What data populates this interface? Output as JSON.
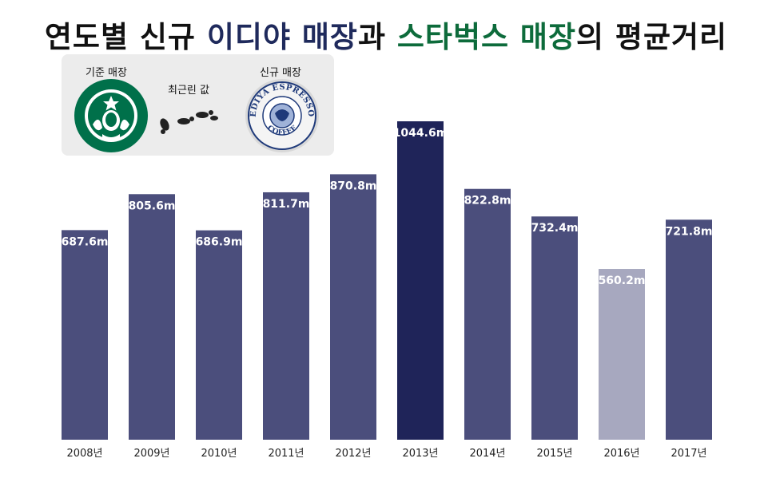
{
  "title": {
    "part1": "연도별 신규 ",
    "ediya": "이디야 매장",
    "part2": "과 ",
    "starbucks": "스타벅스 매장",
    "part3": "의 평균거리"
  },
  "legend": {
    "base_label": "기준 매장",
    "distance_label": "최근린 값",
    "new_label": "신규 매장",
    "base_logo": "starbucks-logo",
    "new_logo": "ediya-espresso-logo",
    "ediya_logo_text_top": "EDIYA ESPRESSO",
    "ediya_logo_text_bottom": "COFFEE"
  },
  "colors": {
    "bar": "#4b4e7c",
    "highlight_max": "#1f2459",
    "highlight_min": "#a7a8bf",
    "ediya_title": "#1f2a5c",
    "starbucks_title": "#0d6b3b",
    "starbucks_green": "#00704a"
  },
  "chart_data": {
    "type": "bar",
    "categories": [
      "2008년",
      "2009년",
      "2010년",
      "2011년",
      "2012년",
      "2013년",
      "2014년",
      "2015년",
      "2016년",
      "2017년"
    ],
    "values": [
      687.6,
      805.6,
      686.9,
      811.7,
      870.8,
      1044.6,
      822.8,
      732.4,
      560.2,
      721.8
    ],
    "value_labels": [
      "687.6m",
      "805.6m",
      "686.9m",
      "811.7m",
      "870.8m",
      "1044.6m",
      "822.8m",
      "732.4m",
      "560.2m",
      "721.8m"
    ],
    "unit": "m",
    "title": "",
    "xlabel": "",
    "ylabel": "",
    "ylim": [
      0,
      1100
    ],
    "grid": false,
    "highlight": {
      "max_index": 5,
      "min_index": 8
    }
  }
}
